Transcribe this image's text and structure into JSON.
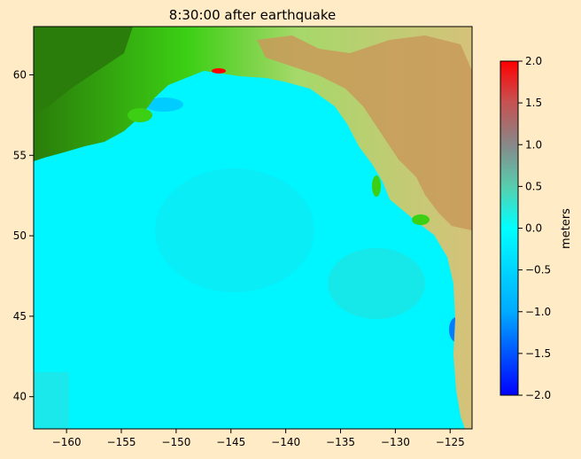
{
  "chart_data": {
    "type": "heatmap",
    "title": "8:30:00 after earthquake",
    "xlim": [
      -163,
      -123
    ],
    "ylim": [
      38,
      63
    ],
    "x_ticks": [
      -160,
      -155,
      -150,
      -145,
      -140,
      -135,
      -130,
      -125
    ],
    "y_ticks": [
      40,
      45,
      50,
      55,
      60
    ],
    "colorbar": {
      "label": "meters",
      "range": [
        -2.0,
        2.0
      ],
      "ticks": [
        "2.0",
        "1.5",
        "1.0",
        "0.5",
        "0.0",
        "−0.5",
        "−1.0",
        "−1.5",
        "−2.0"
      ],
      "colors": [
        "#0000ff",
        "#00aaff",
        "#00ffff",
        "#55d0b0",
        "#888888",
        "#c85050",
        "#ff0000"
      ]
    },
    "legend": "none",
    "grid": false,
    "colors": {
      "ocean": "#00f6ff",
      "deep_land": "#2a7d0a",
      "low_land": "#3ccf14",
      "mid_land": "#d5dd8a",
      "high_land": "#c08448"
    }
  }
}
